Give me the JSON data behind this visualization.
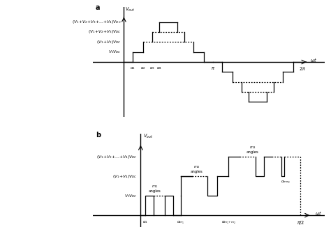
{
  "fig_width": 4.74,
  "fig_height": 3.36,
  "dpi": 100,
  "panel_a": {
    "xlim": [
      -3.5,
      22.5
    ],
    "ylim": [
      -5.5,
      5.5
    ],
    "pi_x": 10,
    "two_pi": 20,
    "a1": 1.0,
    "a2": 2.2,
    "a3": 3.2,
    "a4": 4.0,
    "levels": [
      1,
      2,
      3,
      4
    ]
  },
  "panel_b": {
    "xlim": [
      -3.0,
      11.5
    ],
    "ylim": [
      -0.6,
      4.2
    ],
    "pi2_x": 10,
    "levels": [
      1,
      2,
      3
    ]
  }
}
